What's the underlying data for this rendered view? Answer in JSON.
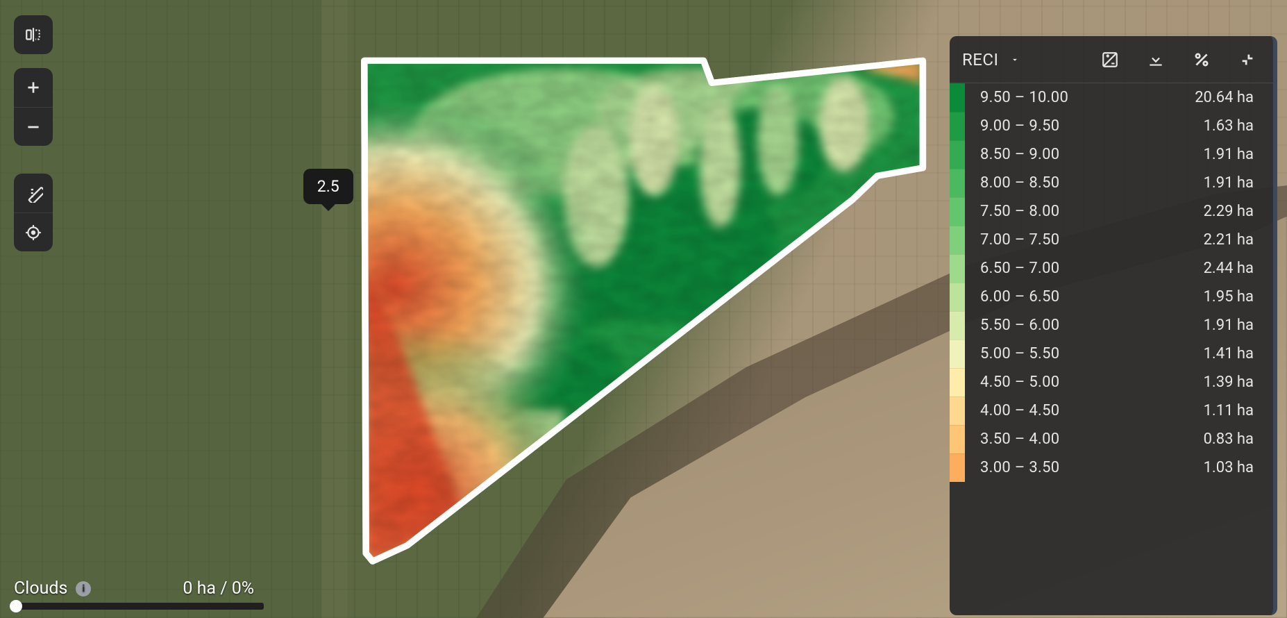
{
  "tooltip": {
    "value": "2.5"
  },
  "clouds": {
    "label": "Clouds",
    "value": "0 ha / 0%"
  },
  "index_select": {
    "label": "RECI"
  },
  "legend_unit": "ha",
  "legend": [
    {
      "color": "#0b8a3a",
      "range": "9.50 – 10.00",
      "area": "20.64 ha"
    },
    {
      "color": "#1f9b45",
      "range": "9.00 – 9.50",
      "area": "1.63 ha"
    },
    {
      "color": "#34aa52",
      "range": "8.50 – 9.00",
      "area": "1.91 ha"
    },
    {
      "color": "#4ab95f",
      "range": "8.00 – 8.50",
      "area": "1.91 ha"
    },
    {
      "color": "#63c56c",
      "range": "7.50 – 8.00",
      "area": "2.29 ha"
    },
    {
      "color": "#7fd07b",
      "range": "7.00 – 7.50",
      "area": "2.21 ha"
    },
    {
      "color": "#9dda8b",
      "range": "6.50 – 7.00",
      "area": "2.44 ha"
    },
    {
      "color": "#bbe39c",
      "range": "6.00 – 6.50",
      "area": "1.95 ha"
    },
    {
      "color": "#d7ecac",
      "range": "5.50 – 6.00",
      "area": "1.91 ha"
    },
    {
      "color": "#eff3ba",
      "range": "5.00 – 5.50",
      "area": "1.41 ha"
    },
    {
      "color": "#fdecaa",
      "range": "4.50 – 5.00",
      "area": "1.39 ha"
    },
    {
      "color": "#fdd98f",
      "range": "4.00 – 4.50",
      "area": "1.11 ha"
    },
    {
      "color": "#fdc576",
      "range": "3.50 – 4.00",
      "area": "0.83 ha"
    },
    {
      "color": "#fcae5e",
      "range": "3.00 – 3.50",
      "area": "1.03 ha"
    }
  ],
  "heatmap_palette": {
    "high": "#0b8a3a",
    "mid_high": "#9dda8b",
    "mid": "#eff3ba",
    "mid_low": "#fdc576",
    "low": "#e24b2a"
  }
}
